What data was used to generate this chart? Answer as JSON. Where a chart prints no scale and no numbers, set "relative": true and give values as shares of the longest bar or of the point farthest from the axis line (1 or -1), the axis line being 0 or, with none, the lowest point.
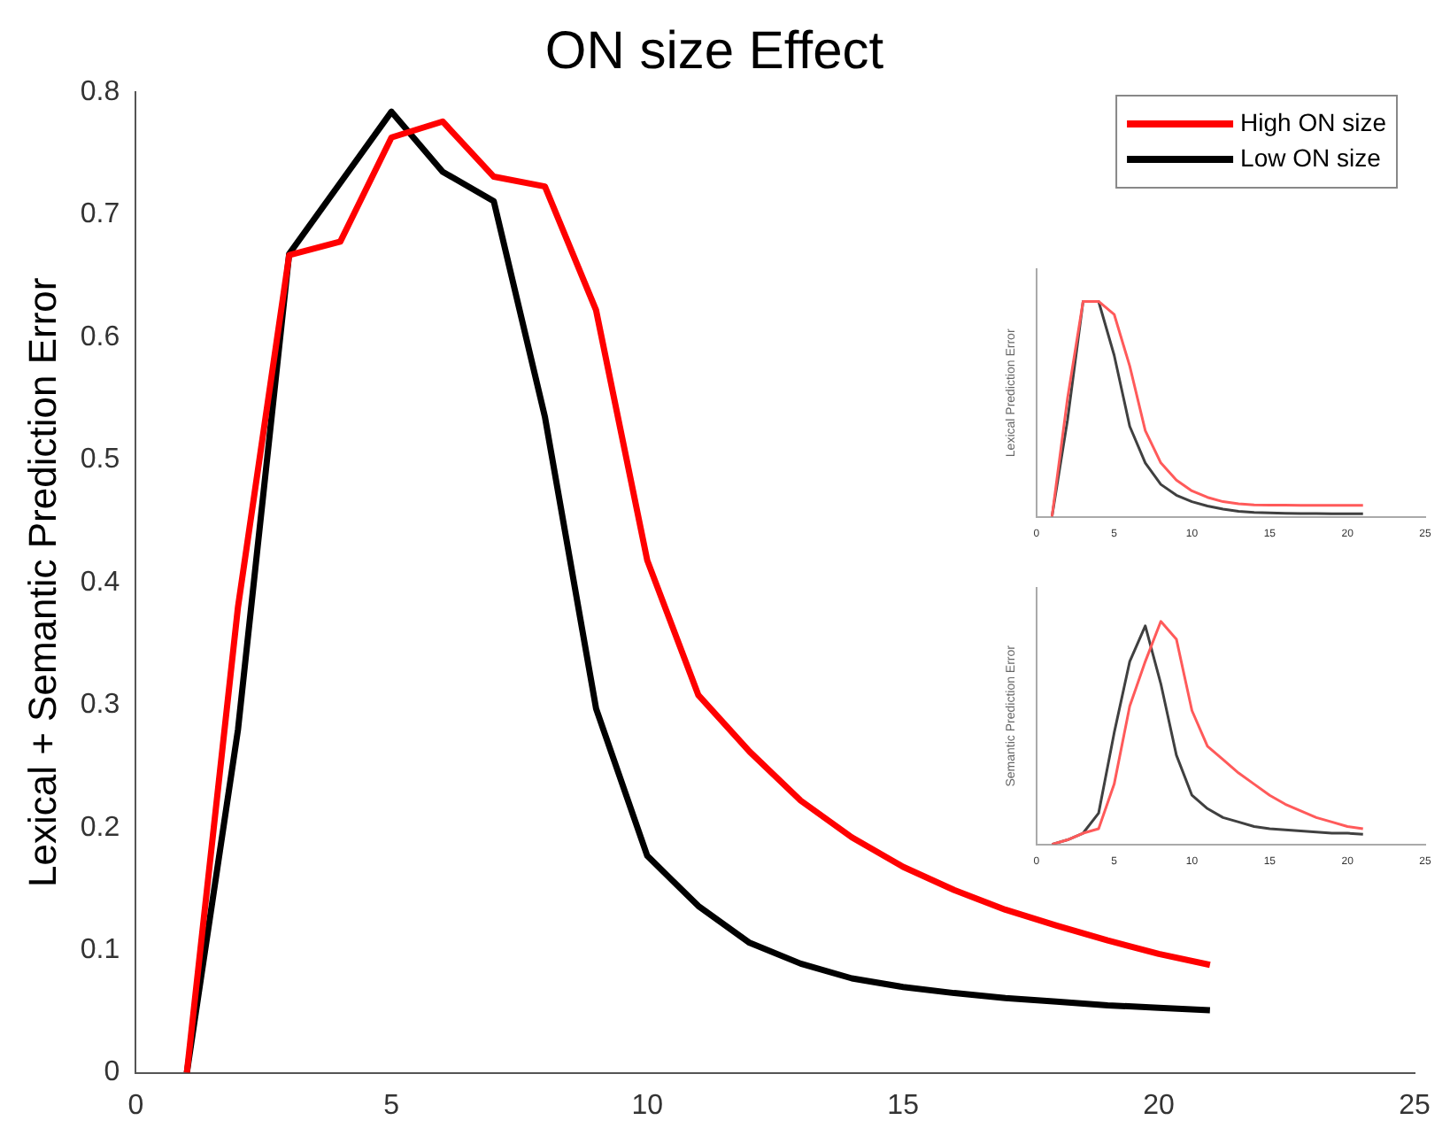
{
  "chart_data": [
    {
      "type": "line",
      "title": "ON size Effect",
      "ylabel": "Lexical + Semantic Prediction Error",
      "x": [
        1,
        2,
        3,
        4,
        5,
        6,
        7,
        8,
        9,
        10,
        11,
        12,
        13,
        14,
        15,
        16,
        17,
        18,
        19,
        20,
        21
      ],
      "series": [
        {
          "name": "High ON size",
          "color": "#ff0000",
          "values": [
            0,
            0.38,
            0.667,
            0.678,
            0.763,
            0.776,
            0.731,
            0.723,
            0.622,
            0.418,
            0.308,
            0.262,
            0.222,
            0.192,
            0.168,
            0.149,
            0.133,
            0.12,
            0.108,
            0.097,
            0.088
          ]
        },
        {
          "name": "Low ON size",
          "color": "#000000",
          "values": [
            0,
            0.28,
            0.668,
            0.726,
            0.784,
            0.735,
            0.711,
            0.535,
            0.297,
            0.177,
            0.136,
            0.106,
            0.089,
            0.077,
            0.07,
            0.065,
            0.061,
            0.058,
            0.055,
            0.053,
            0.051
          ]
        }
      ],
      "xlim": [
        0,
        25
      ],
      "xticks": [
        0,
        5,
        10,
        15,
        20,
        25
      ],
      "ylim": [
        0,
        0.8
      ],
      "yticks": [
        0,
        0.1,
        0.2,
        0.3,
        0.4,
        0.5,
        0.6,
        0.7,
        0.8
      ],
      "legend": "top right",
      "grid": false
    },
    {
      "type": "line",
      "ylabel": "Lexical Prediction Error",
      "relative": true,
      "tick_labels": "x",
      "x": [
        1,
        2,
        3,
        4,
        5,
        6,
        7,
        8,
        9,
        10,
        11,
        12,
        13,
        14,
        15,
        16,
        17,
        18,
        19,
        20,
        21
      ],
      "series": [
        {
          "color": "#ff5a5a",
          "values": [
            0,
            0.55,
            1,
            1,
            0.94,
            0.7,
            0.4,
            0.25,
            0.17,
            0.12,
            0.09,
            0.07,
            0.06,
            0.055,
            0.054,
            0.054,
            0.053,
            0.053,
            0.053,
            0.053,
            0.053
          ]
        },
        {
          "color": "#404040",
          "values": [
            0,
            0.45,
            1,
            1,
            0.75,
            0.42,
            0.25,
            0.15,
            0.1,
            0.07,
            0.05,
            0.035,
            0.025,
            0.02,
            0.018,
            0.016,
            0.015,
            0.015,
            0.014,
            0.014,
            0.014
          ]
        }
      ],
      "xlim": [
        0,
        25
      ],
      "xticks": [
        0,
        5,
        10,
        15,
        20,
        25
      ],
      "legend": false,
      "grid": false
    },
    {
      "type": "line",
      "ylabel": "Semantic Prediction Error",
      "relative": true,
      "tick_labels": "x",
      "x": [
        1,
        2,
        3,
        4,
        5,
        6,
        7,
        8,
        9,
        10,
        11,
        12,
        13,
        14,
        15,
        16,
        17,
        18,
        19,
        20,
        21
      ],
      "series": [
        {
          "color": "#ff5a5a",
          "values": [
            0,
            0.02,
            0.05,
            0.07,
            0.27,
            0.62,
            0.82,
            1,
            0.92,
            0.6,
            0.44,
            0.38,
            0.32,
            0.27,
            0.22,
            0.18,
            0.15,
            0.12,
            0.1,
            0.08,
            0.07
          ]
        },
        {
          "color": "#404040",
          "values": [
            0,
            0.02,
            0.05,
            0.14,
            0.5,
            0.82,
            0.98,
            0.72,
            0.4,
            0.22,
            0.16,
            0.12,
            0.1,
            0.08,
            0.07,
            0.065,
            0.06,
            0.055,
            0.05,
            0.05,
            0.045
          ]
        }
      ],
      "xlim": [
        0,
        25
      ],
      "xticks": [
        0,
        5,
        10,
        15,
        20,
        25
      ],
      "legend": false,
      "grid": false
    }
  ]
}
